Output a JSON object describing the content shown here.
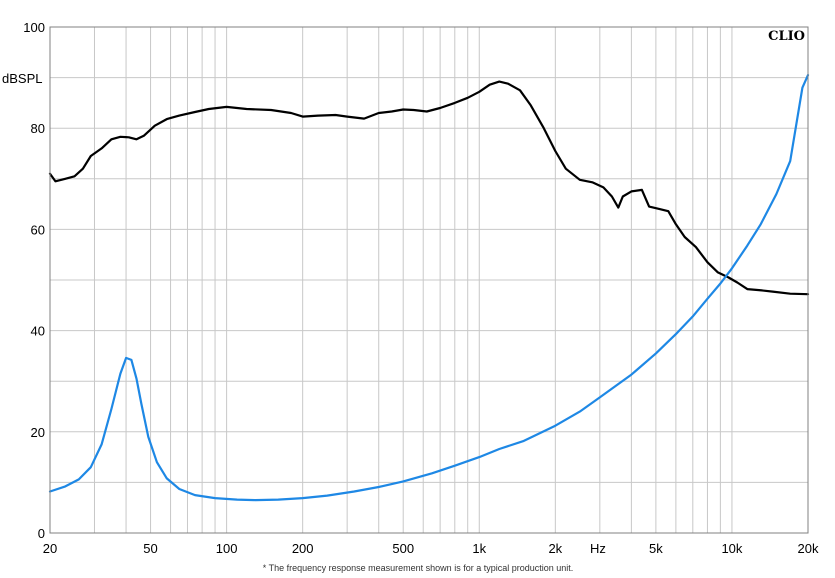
{
  "brand": "CLIO",
  "footnote": "* The frequency response measurement shown is for a typical production unit.",
  "chart_data": {
    "type": "line",
    "ylabel": "dBSPL",
    "xlabel": "Hz",
    "xscale": "log",
    "xlim": [
      20,
      20000
    ],
    "ylim": [
      0,
      100
    ],
    "grid": true,
    "x_tick_labels": [
      {
        "x": 20,
        "label": "20"
      },
      {
        "x": 50,
        "label": "50"
      },
      {
        "x": 100,
        "label": "100"
      },
      {
        "x": 200,
        "label": "200"
      },
      {
        "x": 500,
        "label": "500"
      },
      {
        "x": 1000,
        "label": "1k"
      },
      {
        "x": 2000,
        "label": "2k"
      },
      {
        "x": 5000,
        "label": "5k"
      },
      {
        "x": 10000,
        "label": "10k"
      },
      {
        "x": 20000,
        "label": "20k"
      }
    ],
    "y_tick_labels": [
      {
        "y": 0,
        "label": "0"
      },
      {
        "y": 20,
        "label": "20"
      },
      {
        "y": 40,
        "label": "40"
      },
      {
        "y": 60,
        "label": "60"
      },
      {
        "y": 80,
        "label": "80"
      },
      {
        "y": 100,
        "label": "100"
      }
    ],
    "series": [
      {
        "color": "#000000",
        "points": [
          [
            20,
            71
          ],
          [
            21,
            69.5
          ],
          [
            23,
            70
          ],
          [
            25,
            70.5
          ],
          [
            27,
            72
          ],
          [
            29,
            74.5
          ],
          [
            32,
            76
          ],
          [
            35,
            77.8
          ],
          [
            38,
            78.3
          ],
          [
            41,
            78.2
          ],
          [
            44,
            77.8
          ],
          [
            47,
            78.5
          ],
          [
            52,
            80.5
          ],
          [
            58,
            81.8
          ],
          [
            65,
            82.5
          ],
          [
            75,
            83.2
          ],
          [
            85,
            83.8
          ],
          [
            100,
            84.2
          ],
          [
            120,
            83.8
          ],
          [
            150,
            83.6
          ],
          [
            180,
            83
          ],
          [
            200,
            82.3
          ],
          [
            230,
            82.5
          ],
          [
            270,
            82.6
          ],
          [
            300,
            82.3
          ],
          [
            350,
            81.9
          ],
          [
            400,
            83
          ],
          [
            450,
            83.3
          ],
          [
            500,
            83.7
          ],
          [
            550,
            83.6
          ],
          [
            620,
            83.3
          ],
          [
            700,
            84
          ],
          [
            800,
            85
          ],
          [
            900,
            86
          ],
          [
            1000,
            87.2
          ],
          [
            1100,
            88.6
          ],
          [
            1200,
            89.2
          ],
          [
            1300,
            88.8
          ],
          [
            1450,
            87.5
          ],
          [
            1600,
            84.5
          ],
          [
            1800,
            80
          ],
          [
            2000,
            75.5
          ],
          [
            2200,
            72
          ],
          [
            2500,
            69.8
          ],
          [
            2800,
            69.3
          ],
          [
            3100,
            68.3
          ],
          [
            3350,
            66.5
          ],
          [
            3550,
            64.3
          ],
          [
            3700,
            66.5
          ],
          [
            4000,
            67.5
          ],
          [
            4400,
            67.8
          ],
          [
            4700,
            64.5
          ],
          [
            5200,
            64
          ],
          [
            5600,
            63.6
          ],
          [
            6000,
            61
          ],
          [
            6500,
            58.5
          ],
          [
            7200,
            56.5
          ],
          [
            8000,
            53.5
          ],
          [
            8800,
            51.5
          ],
          [
            9700,
            50.5
          ],
          [
            10500,
            49.5
          ],
          [
            11500,
            48.2
          ],
          [
            12800,
            48
          ],
          [
            14500,
            47.7
          ],
          [
            17000,
            47.3
          ],
          [
            20000,
            47.2
          ]
        ]
      },
      {
        "color": "#1e88e5",
        "points": [
          [
            20,
            8.2
          ],
          [
            23,
            9.2
          ],
          [
            26,
            10.6
          ],
          [
            29,
            13
          ],
          [
            32,
            17.5
          ],
          [
            35,
            24.5
          ],
          [
            38,
            31.5
          ],
          [
            40,
            34.6
          ],
          [
            42,
            34.2
          ],
          [
            44,
            30.5
          ],
          [
            46,
            25.5
          ],
          [
            49,
            19
          ],
          [
            53,
            14
          ],
          [
            58,
            10.8
          ],
          [
            65,
            8.7
          ],
          [
            75,
            7.5
          ],
          [
            90,
            6.9
          ],
          [
            110,
            6.6
          ],
          [
            130,
            6.5
          ],
          [
            160,
            6.6
          ],
          [
            200,
            6.9
          ],
          [
            250,
            7.4
          ],
          [
            320,
            8.2
          ],
          [
            400,
            9.1
          ],
          [
            500,
            10.2
          ],
          [
            650,
            11.8
          ],
          [
            800,
            13.3
          ],
          [
            1000,
            15
          ],
          [
            1200,
            16.6
          ],
          [
            1500,
            18.2
          ],
          [
            2000,
            21.2
          ],
          [
            2500,
            24
          ],
          [
            3000,
            26.8
          ],
          [
            4000,
            31.3
          ],
          [
            5000,
            35.5
          ],
          [
            6000,
            39.3
          ],
          [
            7000,
            42.8
          ],
          [
            8000,
            46.3
          ],
          [
            9000,
            49.3
          ],
          [
            10000,
            52.3
          ],
          [
            11500,
            56.8
          ],
          [
            13000,
            61
          ],
          [
            15000,
            67
          ],
          [
            17000,
            73.5
          ],
          [
            19000,
            88
          ],
          [
            20000,
            90.5
          ]
        ]
      }
    ]
  }
}
